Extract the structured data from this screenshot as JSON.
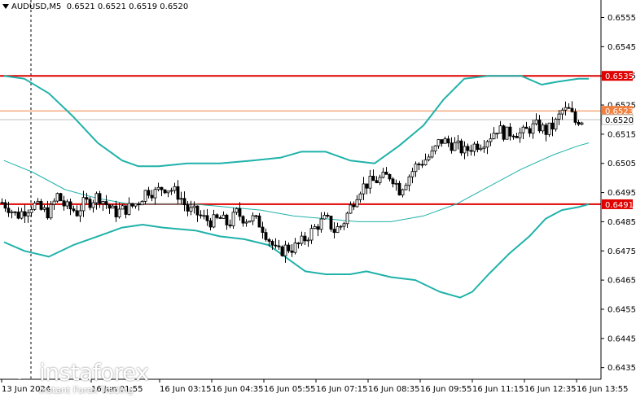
{
  "header": {
    "symbol": "AUDUSD,M5",
    "ohlc": "0.6521 0.6521 0.6519 0.6520"
  },
  "watermark": {
    "brand": "instaforex",
    "sub": "Instant Forex Trading"
  },
  "colors": {
    "background": "#ffffff",
    "candle": "#000000",
    "bollinger": "#20b2aa",
    "moving_average": "#20b2aa",
    "level_line": "#e00000",
    "bid_line": "#f08040",
    "ask_line": "#c0c0c0"
  },
  "chart_data": {
    "type": "candlestick",
    "timeframe": "M5",
    "ylim": [
      0.6431,
      0.6561
    ],
    "y_ticks": [
      0.6555,
      0.6545,
      0.6535,
      0.6525,
      0.6515,
      0.6505,
      0.6495,
      0.6485,
      0.6475,
      0.6465,
      0.6455,
      0.6445,
      0.6435
    ],
    "y_tick_labels": [
      "0.6555",
      "0.6545",
      "0.6535",
      "0.6525",
      "0.6515",
      "0.6505",
      "0.6495",
      "0.6485",
      "0.6475",
      "0.6465",
      "0.6455",
      "0.6445",
      "0.6435"
    ],
    "x_labels": [
      "13 Jun 2024",
      "16 Jun 01:55",
      "16 Jun 03:15",
      "16 Jun 04:35",
      "16 Jun 05:55",
      "16 Jun 07:15",
      "16 Jun 08:35",
      "16 Jun 09:55",
      "16 Jun 11:15",
      "16 Jun 12:35",
      "16 Jun 13:55"
    ],
    "price_labels": [
      {
        "value": 0.6535,
        "text": "0.6535",
        "kind": "level"
      },
      {
        "value": 0.6523,
        "text": "0.6523",
        "kind": "bid"
      },
      {
        "value": 0.652,
        "text": "0.6520",
        "kind": "current"
      },
      {
        "value": 0.6491,
        "text": "0.6491",
        "kind": "level"
      }
    ],
    "horizontal_levels": [
      0.6535,
      0.6491
    ],
    "bid_line": 0.6523,
    "ask_line": 0.652,
    "close_path": [
      [
        0,
        0.6492
      ],
      [
        10,
        0.649
      ],
      [
        20,
        0.6487
      ],
      [
        30,
        0.6489
      ],
      [
        40,
        0.6491
      ],
      [
        50,
        0.6489
      ],
      [
        60,
        0.6488
      ],
      [
        70,
        0.6494
      ],
      [
        80,
        0.649
      ],
      [
        90,
        0.6489
      ],
      [
        95,
        0.6488
      ],
      [
        100,
        0.6491
      ],
      [
        110,
        0.6492
      ],
      [
        120,
        0.6494
      ],
      [
        130,
        0.6491
      ],
      [
        140,
        0.6488
      ],
      [
        150,
        0.6489
      ],
      [
        160,
        0.649
      ],
      [
        170,
        0.6492
      ],
      [
        180,
        0.6496
      ],
      [
        190,
        0.6495
      ],
      [
        200,
        0.6497
      ],
      [
        210,
        0.6496
      ],
      [
        220,
        0.6494
      ],
      [
        230,
        0.6489
      ],
      [
        240,
        0.6488
      ],
      [
        250,
        0.6486
      ],
      [
        260,
        0.6485
      ],
      [
        270,
        0.6486
      ],
      [
        280,
        0.6484
      ],
      [
        290,
        0.6488
      ],
      [
        300,
        0.6486
      ],
      [
        310,
        0.6486
      ],
      [
        320,
        0.6484
      ],
      [
        330,
        0.6479
      ],
      [
        340,
        0.6474
      ],
      [
        350,
        0.6476
      ],
      [
        360,
        0.6476
      ],
      [
        370,
        0.6478
      ],
      [
        380,
        0.6481
      ],
      [
        390,
        0.6484
      ],
      [
        400,
        0.6486
      ],
      [
        410,
        0.6482
      ],
      [
        420,
        0.6484
      ],
      [
        430,
        0.649
      ],
      [
        440,
        0.6496
      ],
      [
        450,
        0.6498
      ],
      [
        460,
        0.6499
      ],
      [
        470,
        0.65
      ],
      [
        480,
        0.6501
      ],
      [
        490,
        0.6496
      ],
      [
        500,
        0.65
      ],
      [
        510,
        0.6504
      ],
      [
        520,
        0.6506
      ],
      [
        530,
        0.6508
      ],
      [
        540,
        0.6513
      ],
      [
        550,
        0.6512
      ],
      [
        560,
        0.6511
      ],
      [
        570,
        0.6509
      ],
      [
        580,
        0.6511
      ],
      [
        590,
        0.6512
      ],
      [
        600,
        0.6514
      ],
      [
        610,
        0.6517
      ],
      [
        620,
        0.6515
      ],
      [
        630,
        0.6516
      ],
      [
        640,
        0.6515
      ],
      [
        650,
        0.6517
      ],
      [
        660,
        0.6518
      ],
      [
        670,
        0.6516
      ],
      [
        680,
        0.6518
      ],
      [
        690,
        0.6523
      ],
      [
        700,
        0.6523
      ],
      [
        705,
        0.6519
      ],
      [
        710,
        0.652
      ],
      [
        714,
        0.652
      ]
    ],
    "bollinger_upper": [
      [
        5,
        0.6535
      ],
      [
        30,
        0.6534
      ],
      [
        60,
        0.6529
      ],
      [
        90,
        0.6521
      ],
      [
        120,
        0.6512
      ],
      [
        150,
        0.6506
      ],
      [
        170,
        0.6504
      ],
      [
        195,
        0.6504
      ],
      [
        230,
        0.6505
      ],
      [
        270,
        0.6505
      ],
      [
        310,
        0.6506
      ],
      [
        345,
        0.6507
      ],
      [
        370,
        0.6509
      ],
      [
        400,
        0.6509
      ],
      [
        430,
        0.6506
      ],
      [
        460,
        0.6505
      ],
      [
        490,
        0.6511
      ],
      [
        520,
        0.6518
      ],
      [
        545,
        0.6527
      ],
      [
        570,
        0.6534
      ],
      [
        600,
        0.6535
      ],
      [
        640,
        0.6535
      ],
      [
        665,
        0.6532
      ],
      [
        685,
        0.6533
      ],
      [
        710,
        0.6534
      ],
      [
        723,
        0.6534
      ]
    ],
    "bollinger_lower": [
      [
        5,
        0.6478
      ],
      [
        30,
        0.6475
      ],
      [
        60,
        0.6473
      ],
      [
        90,
        0.6477
      ],
      [
        120,
        0.648
      ],
      [
        150,
        0.6483
      ],
      [
        175,
        0.6484
      ],
      [
        200,
        0.6483
      ],
      [
        240,
        0.6482
      ],
      [
        270,
        0.648
      ],
      [
        300,
        0.6479
      ],
      [
        330,
        0.6477
      ],
      [
        350,
        0.6473
      ],
      [
        375,
        0.6468
      ],
      [
        400,
        0.6467
      ],
      [
        430,
        0.6467
      ],
      [
        450,
        0.6468
      ],
      [
        480,
        0.6466
      ],
      [
        510,
        0.6465
      ],
      [
        540,
        0.6461
      ],
      [
        565,
        0.6459
      ],
      [
        580,
        0.6461
      ],
      [
        600,
        0.6467
      ],
      [
        625,
        0.6474
      ],
      [
        650,
        0.648
      ],
      [
        670,
        0.6486
      ],
      [
        690,
        0.6489
      ],
      [
        710,
        0.649
      ],
      [
        723,
        0.6491
      ]
    ],
    "moving_average": [
      [
        5,
        0.6506
      ],
      [
        40,
        0.6502
      ],
      [
        80,
        0.6496
      ],
      [
        120,
        0.6493
      ],
      [
        160,
        0.6491
      ],
      [
        200,
        0.6491
      ],
      [
        240,
        0.6491
      ],
      [
        280,
        0.649
      ],
      [
        320,
        0.6489
      ],
      [
        360,
        0.6487
      ],
      [
        400,
        0.6486
      ],
      [
        440,
        0.6485
      ],
      [
        480,
        0.6485
      ],
      [
        520,
        0.6487
      ],
      [
        560,
        0.6491
      ],
      [
        600,
        0.6497
      ],
      [
        640,
        0.6503
      ],
      [
        680,
        0.6508
      ],
      [
        710,
        0.6511
      ],
      [
        723,
        0.6512
      ]
    ]
  }
}
